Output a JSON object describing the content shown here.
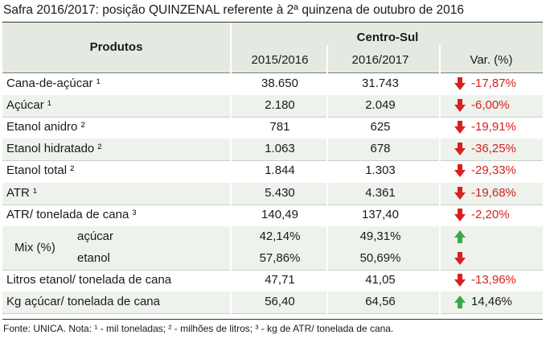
{
  "title": "Safra 2016/2017: posição QUINZENAL referente à 2ª quinzena de outubro de 2016",
  "header": {
    "produtos": "Produtos",
    "group": "Centro-Sul",
    "col1": "2015/2016",
    "col2": "2016/2017",
    "col3": "Var. (%)"
  },
  "rows": [
    {
      "label": "Cana-de-açúcar ¹",
      "v1": "38.650",
      "v2": "31.743",
      "var": "-17,87%",
      "dir": "down"
    },
    {
      "label": "Açúcar ¹",
      "v1": "2.180",
      "v2": "2.049",
      "var": "-6,00%",
      "dir": "down"
    },
    {
      "label": "Etanol anidro ²",
      "v1": "781",
      "v2": "625",
      "var": "-19,91%",
      "dir": "down"
    },
    {
      "label": "Etanol hidratado ²",
      "v1": "1.063",
      "v2": "678",
      "var": "-36,25%",
      "dir": "down"
    },
    {
      "label": "Etanol total ²",
      "v1": "1.844",
      "v2": "1.303",
      "var": "-29,33%",
      "dir": "down"
    },
    {
      "label": "ATR ¹",
      "v1": "5.430",
      "v2": "4.361",
      "var": "-19,68%",
      "dir": "down"
    },
    {
      "label": "ATR/ tonelada de cana ³",
      "v1": "140,49",
      "v2": "137,40",
      "var": "-2,20%",
      "dir": "down"
    }
  ],
  "mix": {
    "label": "Mix (%)",
    "acucar": {
      "label": "açúcar",
      "v1": "42,14%",
      "v2": "49,31%",
      "var": "",
      "dir": "up"
    },
    "etanol": {
      "label": "etanol",
      "v1": "57,86%",
      "v2": "50,69%",
      "var": "",
      "dir": "down"
    }
  },
  "rows2": [
    {
      "label": "Litros etanol/ tonelada de cana",
      "v1": "47,71",
      "v2": "41,05",
      "var": "-13,96%",
      "dir": "down"
    },
    {
      "label": "Kg açúcar/ tonelada de cana",
      "v1": "56,40",
      "v2": "64,56",
      "var": "14,46%",
      "dir": "up"
    }
  ],
  "footer": "Fonte: UNICA. Nota: ¹ - mil toneladas; ² - milhões de litros; ³ - kg de ATR/ tonelada de cana.",
  "colors": {
    "header_bg": "#e4eae2",
    "row_bg": "#eef2ec",
    "down": "#d8201f",
    "up": "#3aa84a"
  },
  "icons": {
    "down": "arrow-down-icon",
    "up": "arrow-up-icon"
  }
}
